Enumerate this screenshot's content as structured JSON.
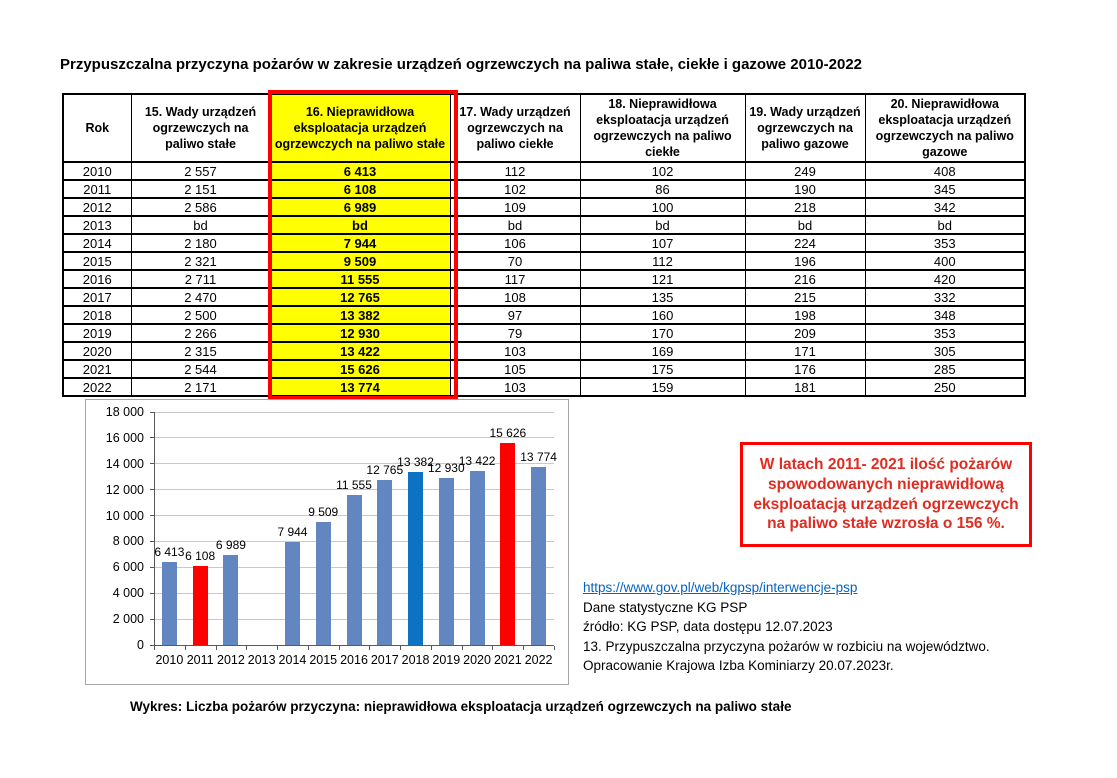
{
  "page": {
    "title": "Przypuszczalna przyczyna pożarów w zakresie urządzeń ogrzewczych na paliwa stałe, ciekłe i gazowe 2010-2022",
    "caption": "Wykres:  Liczba pożarów przyczyna: nieprawidłowa eksploatacja urządzeń ogrzewczych na paliwo stałe"
  },
  "table": {
    "columns": [
      "Rok",
      "15. Wady urządzeń ogrzewczych na paliwo stałe",
      "16. Nieprawidłowa eksploatacja urządzeń ogrzewczych na paliwo stałe",
      "17. Wady urządzeń ogrzewczych na paliwo ciekłe",
      "18. Nieprawidłowa eksploatacja urządzeń ogrzewczych na paliwo ciekłe",
      "19. Wady urządzeń ogrzewczych na paliwo gazowe",
      "20. Nieprawidłowa eksploatacja urządzeń ogrzewczych na paliwo gazowe"
    ],
    "highlight_column_index": 2,
    "highlight_border_color": "#ff0000",
    "highlight_fill_color": "#ffff00",
    "rows": [
      [
        "2010",
        "2 557",
        "6 413",
        "112",
        "102",
        "249",
        "408"
      ],
      [
        "2011",
        "2 151",
        "6 108",
        "102",
        "86",
        "190",
        "345"
      ],
      [
        "2012",
        "2 586",
        "6 989",
        "109",
        "100",
        "218",
        "342"
      ],
      [
        "2013",
        "bd",
        "bd",
        "bd",
        "bd",
        "bd",
        "bd"
      ],
      [
        "2014",
        "2 180",
        "7 944",
        "106",
        "107",
        "224",
        "353"
      ],
      [
        "2015",
        "2 321",
        "9 509",
        "70",
        "112",
        "196",
        "400"
      ],
      [
        "2016",
        "2 711",
        "11 555",
        "117",
        "121",
        "216",
        "420"
      ],
      [
        "2017",
        "2 470",
        "12 765",
        "108",
        "135",
        "215",
        "332"
      ],
      [
        "2018",
        "2 500",
        "13 382",
        "97",
        "160",
        "198",
        "348"
      ],
      [
        "2019",
        "2 266",
        "12 930",
        "79",
        "170",
        "209",
        "353"
      ],
      [
        "2020",
        "2 315",
        "13 422",
        "103",
        "169",
        "171",
        "305"
      ],
      [
        "2021",
        "2 544",
        "15 626",
        "105",
        "175",
        "176",
        "285"
      ],
      [
        "2022",
        "2 171",
        "13 774",
        "103",
        "159",
        "181",
        "250"
      ]
    ]
  },
  "chart_data": {
    "type": "bar",
    "title": "",
    "xlabel": "",
    "ylabel": "",
    "categories": [
      "2010",
      "2011",
      "2012",
      "2013",
      "2014",
      "2015",
      "2016",
      "2017",
      "2018",
      "2019",
      "2020",
      "2021",
      "2022"
    ],
    "values": [
      6413,
      6108,
      6989,
      null,
      7944,
      9509,
      11555,
      12765,
      13382,
      12930,
      13422,
      15626,
      13774
    ],
    "value_labels": [
      "6 413",
      "6 108",
      "6 989",
      "",
      "7 944",
      "9 509",
      "11 555",
      "12 765",
      "13 382",
      "12 930",
      "13 422",
      "15 626",
      "13 774"
    ],
    "bar_color_map": [
      "default",
      "red",
      "default",
      null,
      "default",
      "default",
      "default",
      "default",
      "accent",
      "default",
      "default",
      "red",
      "default"
    ],
    "colors": {
      "default": "#6286bf",
      "red": "#ff0000",
      "accent": "#0e72c2"
    },
    "ylim": [
      0,
      18000
    ],
    "ytick_step": 2000,
    "ytick_labels": [
      "0",
      "2 000",
      "4 000",
      "6 000",
      "8 000",
      "10 000",
      "12 000",
      "14 000",
      "16 000",
      "18 000"
    ],
    "grid": "horizontal",
    "legend": "none"
  },
  "annotation_box": {
    "text": "W latach  2011- 2021 ilość pożarów spowodowanych nieprawidłową eksploatacją urządzeń ogrzewczych na paliwo stałe wzrosła o 156 %.",
    "text_color": "#e02b20",
    "border_color": "#ff0000"
  },
  "sources": {
    "link": "https://www.gov.pl/web/kgpsp/interwencje-psp",
    "lines": [
      "Dane statystyczne KG PSP",
      "źródło: KG PSP, data dostępu 12.07.2023",
      "13. Przypuszczalna przyczyna pożarów w rozbiciu na województwo.",
      "Opracowanie Krajowa Izba Kominiarzy  20.07.2023r."
    ]
  }
}
